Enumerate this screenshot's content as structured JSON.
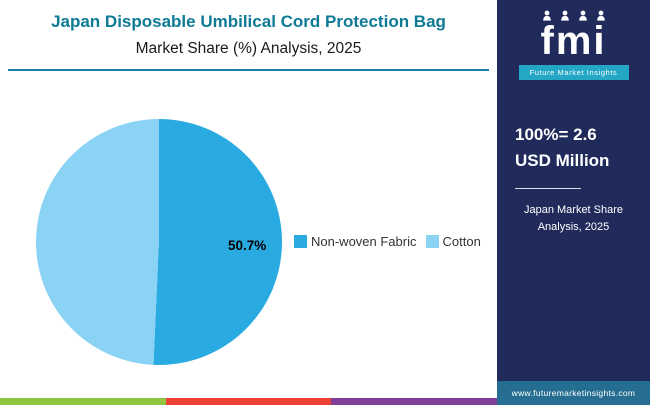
{
  "header": {
    "title": "Japan Disposable Umbilical Cord Protection Bag",
    "subtitle": "Market Share (%) Analysis, 2025"
  },
  "chart_data": {
    "type": "pie",
    "title": "Japan Disposable Umbilical Cord Protection Bag Market Share (%) Analysis, 2025",
    "legend_position": "right",
    "slices": [
      {
        "label": "Non-woven Fabric",
        "value": 50.7,
        "data_label": "50.7%",
        "color": "#29abe2"
      },
      {
        "label": "Cotton",
        "value": 49.3,
        "data_label": "",
        "color": "#8bd3f5"
      }
    ]
  },
  "sidebar": {
    "logo_text": "fmi",
    "logo_caption": "Future Market Insights",
    "stat_line1": "100%= 2.6",
    "stat_line2": "USD Million",
    "note_line1": "Japan Market Share",
    "note_line2": "Analysis, 2025",
    "website": "www.futuremarketinsights.com"
  },
  "colors": {
    "title_color": "#0d7a96",
    "rule_color": "#1b7cae",
    "sidebar_bg": "#202b5c",
    "logo_strip": "#23a7c4",
    "url_bar": "#256e91",
    "legend_text": "#333333"
  },
  "footer_stripes": [
    "#8dc63f",
    "#ee4035",
    "#7f3f98"
  ]
}
